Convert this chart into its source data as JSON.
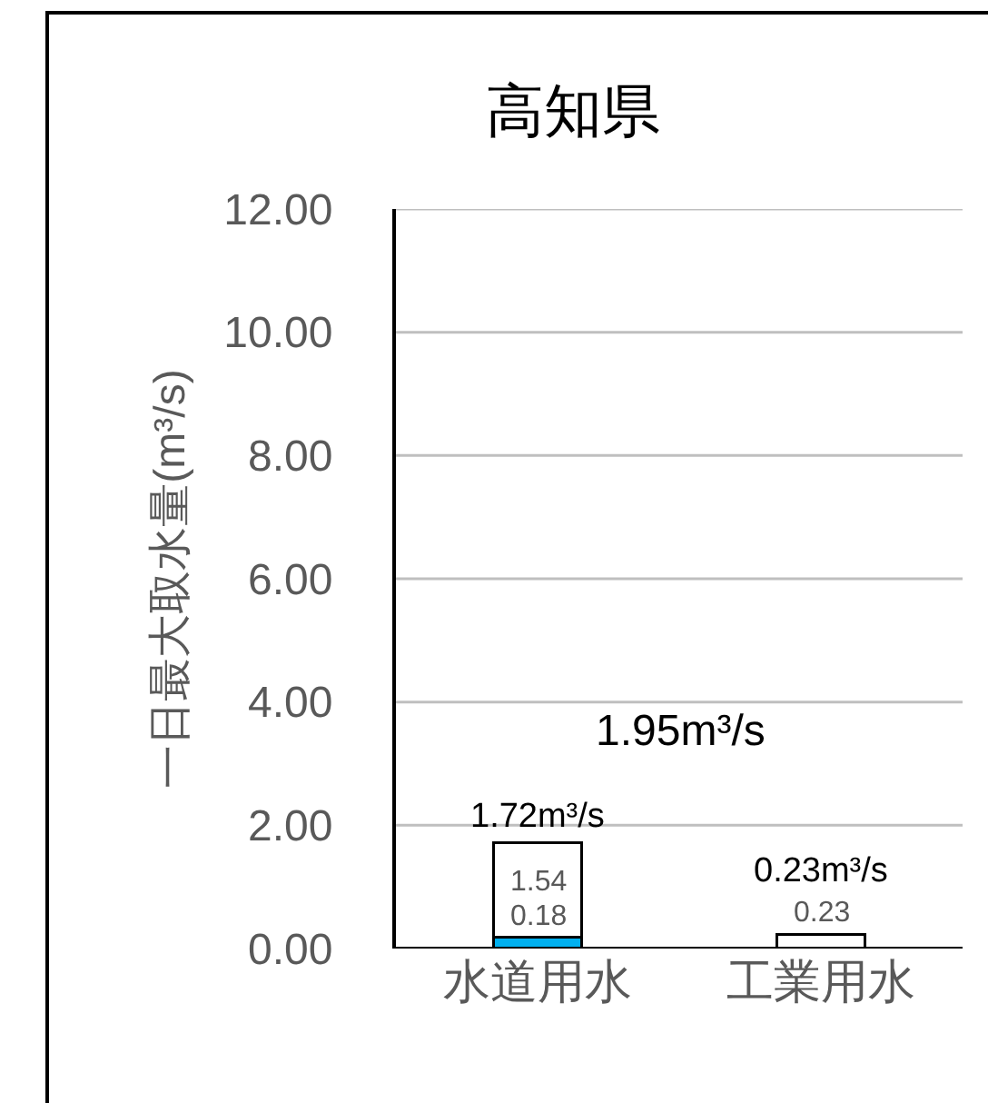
{
  "chart_data": {
    "type": "bar",
    "stacked": true,
    "title": "高知県",
    "ylabel": "一日最大取水量(m³/s)",
    "categories": [
      "水道用水",
      "工業用水"
    ],
    "series": [
      {
        "color": "#00b0f0",
        "values": [
          0.18,
          null
        ],
        "value_labels": [
          "0.18",
          null
        ]
      },
      {
        "color": "#ffffff",
        "values": [
          1.54,
          0.23
        ],
        "value_labels": [
          "1.54",
          "0.23"
        ]
      }
    ],
    "totals": [
      "1.72m³/s",
      "0.23m³/s"
    ],
    "annotations": [
      "1.95m³/s"
    ],
    "ylim": [
      0,
      12
    ],
    "yticks": [
      {
        "value": 0,
        "label": "0.00"
      },
      {
        "value": 2,
        "label": "2.00"
      },
      {
        "value": 4,
        "label": "4.00"
      },
      {
        "value": 6,
        "label": "6.00"
      },
      {
        "value": 8,
        "label": "8.00"
      },
      {
        "value": 10,
        "label": "10.00"
      },
      {
        "value": 12,
        "label": "12.00"
      }
    ],
    "grid": "y",
    "legend": false
  }
}
